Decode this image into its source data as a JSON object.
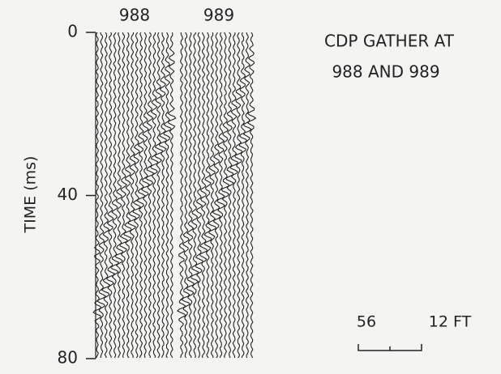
{
  "title": [
    "CDP GATHER AT",
    "988 AND 989"
  ],
  "panels": [
    "988",
    "989"
  ],
  "axis": {
    "label": "TIME (ms)",
    "ticks": [
      0,
      40,
      80
    ]
  },
  "scale": {
    "labels": [
      "56",
      "12 FT"
    ]
  }
}
